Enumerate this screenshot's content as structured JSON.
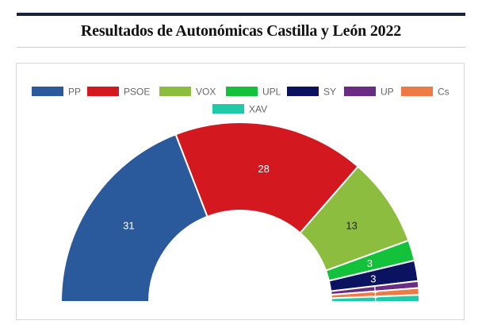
{
  "title": "Resultados de Autonómicas Castilla y León 2022",
  "chart_data": {
    "type": "parliament",
    "total_seats": 81,
    "series": [
      {
        "name": "PP",
        "value": 31,
        "color": "#2a5a9c",
        "label": "31",
        "label_color": "#ffffff"
      },
      {
        "name": "PSOE",
        "value": 28,
        "color": "#d41820",
        "label": "28",
        "label_color": "#ffffff"
      },
      {
        "name": "VOX",
        "value": 13,
        "color": "#8cbd3f",
        "label": "13",
        "label_color": "#222222"
      },
      {
        "name": "UPL",
        "value": 3,
        "color": "#13c13a",
        "label": "3",
        "label_color": "#ffffff"
      },
      {
        "name": "SY",
        "value": 3,
        "color": "#0b1260",
        "label": "3",
        "label_color": "#ffffff"
      },
      {
        "name": "UP",
        "value": 1,
        "color": "#6a2b82",
        "label": "1",
        "label_color": "#ffffff"
      },
      {
        "name": "Cs",
        "value": 1,
        "color": "#ee7a45",
        "label": "1",
        "label_color": "#ffffff"
      },
      {
        "name": "XAV",
        "value": 1,
        "color": "#1fcaa8",
        "label": "1",
        "label_color": "#ffffff"
      }
    ]
  }
}
